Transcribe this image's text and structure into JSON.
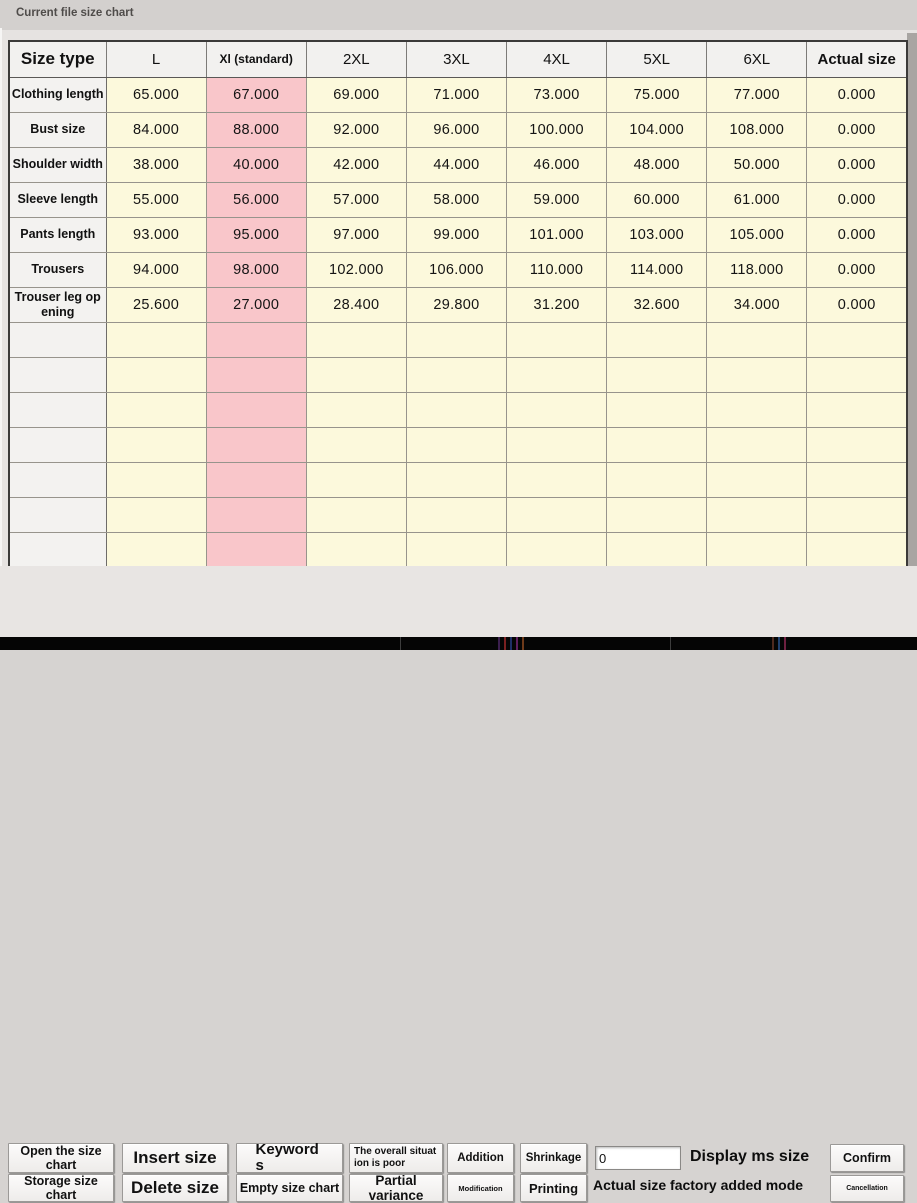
{
  "window": {
    "title": "Current file size chart"
  },
  "colors": {
    "cell_yellow": "#fcf9dc",
    "standard_column_pink": "#f9c6ca",
    "header_gray": "#f2f1ef",
    "panel_gray": "#e8e5e3"
  },
  "table": {
    "columns": [
      "Size type",
      "L",
      "Xl (standard)",
      "2XL",
      "3XL",
      "4XL",
      "5XL",
      "6XL",
      "Actual size"
    ],
    "standard_column_index": 2,
    "rows": [
      {
        "label": "Clothing length",
        "values": [
          "65.000",
          "67.000",
          "69.000",
          "71.000",
          "73.000",
          "75.000",
          "77.000",
          "0.000"
        ]
      },
      {
        "label": "Bust size",
        "values": [
          "84.000",
          "88.000",
          "92.000",
          "96.000",
          "100.000",
          "104.000",
          "108.000",
          "0.000"
        ]
      },
      {
        "label": "Shoulder width",
        "values": [
          "38.000",
          "40.000",
          "42.000",
          "44.000",
          "46.000",
          "48.000",
          "50.000",
          "0.000"
        ]
      },
      {
        "label": "Sleeve length",
        "values": [
          "55.000",
          "56.000",
          "57.000",
          "58.000",
          "59.000",
          "60.000",
          "61.000",
          "0.000"
        ]
      },
      {
        "label": "Pants length",
        "values": [
          "93.000",
          "95.000",
          "97.000",
          "99.000",
          "101.000",
          "103.000",
          "105.000",
          "0.000"
        ]
      },
      {
        "label": "Trousers",
        "values": [
          "94.000",
          "98.000",
          "102.000",
          "106.000",
          "110.000",
          "114.000",
          "118.000",
          "0.000"
        ]
      },
      {
        "label": "Trouser leg opening",
        "values": [
          "25.600",
          "27.000",
          "28.400",
          "29.800",
          "31.200",
          "32.600",
          "34.000",
          "0.000"
        ]
      }
    ],
    "empty_row_count": 7
  },
  "toolbar": {
    "row1": [
      {
        "label": "Open the size chart"
      },
      {
        "label": "Insert size"
      },
      {
        "label": "Keywords"
      },
      {
        "label": "The overall situation is poor"
      },
      {
        "label": "Addition"
      },
      {
        "label": "Shrinkage"
      }
    ],
    "row2": [
      {
        "label": "Storage size chart"
      },
      {
        "label": "Delete size"
      },
      {
        "label": "Empty size chart"
      },
      {
        "label": "Partial variance"
      },
      {
        "label": "Modification"
      },
      {
        "label": "Printing"
      }
    ],
    "ms_size_input": {
      "value": "0"
    },
    "display_ms_size_label": "Display ms size",
    "actual_mode_label": "Actual size factory added mode",
    "confirm_label": "Confirm",
    "cancel_label": "Cancellation"
  }
}
